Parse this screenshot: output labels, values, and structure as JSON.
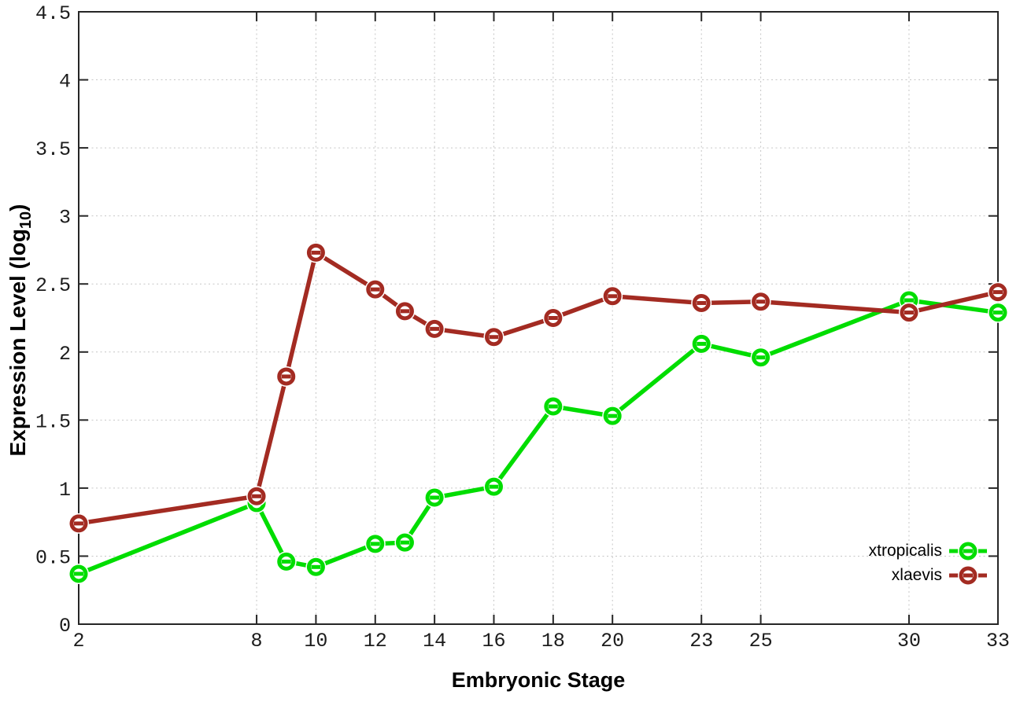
{
  "figure": {
    "xlabel": "Embryonic Stage",
    "ylabel": "Expression Level (log10)",
    "ylabel_parts": {
      "prefix": "Expression Level (log",
      "sub": "10",
      "suffix": ")"
    }
  },
  "chart_data": {
    "type": "line",
    "title": "",
    "xlabel": "Embryonic Stage",
    "ylabel": "Expression Level (log10)",
    "x": [
      2,
      8,
      9,
      10,
      12,
      13,
      14,
      16,
      18,
      20,
      23,
      25,
      30,
      33
    ],
    "series": [
      {
        "name": "xtropicalis",
        "color": "#00dd00",
        "values": [
          0.37,
          0.89,
          0.46,
          0.42,
          0.59,
          0.6,
          0.93,
          1.01,
          1.6,
          1.53,
          2.06,
          1.96,
          2.38,
          2.29
        ]
      },
      {
        "name": "xlaevis",
        "color": "#a32b22",
        "values": [
          0.74,
          0.94,
          1.82,
          2.73,
          2.46,
          2.3,
          2.17,
          2.11,
          2.25,
          2.41,
          2.36,
          2.37,
          2.29,
          2.44
        ]
      }
    ],
    "x_ticks": [
      2,
      8,
      10,
      12,
      14,
      16,
      18,
      20,
      23,
      25,
      30,
      33
    ],
    "y_ticks": [
      0,
      0.5,
      1,
      1.5,
      2,
      2.5,
      3,
      3.5,
      4,
      4.5
    ],
    "xlim": [
      2,
      33
    ],
    "ylim": [
      0,
      4.5
    ],
    "grid": true,
    "grid_style": "dotted",
    "grid_color": "#c6c6c6",
    "axis_color": "#262626",
    "legend_position": "bottom-right",
    "marker": "open-circle",
    "line_width": 5.5
  }
}
